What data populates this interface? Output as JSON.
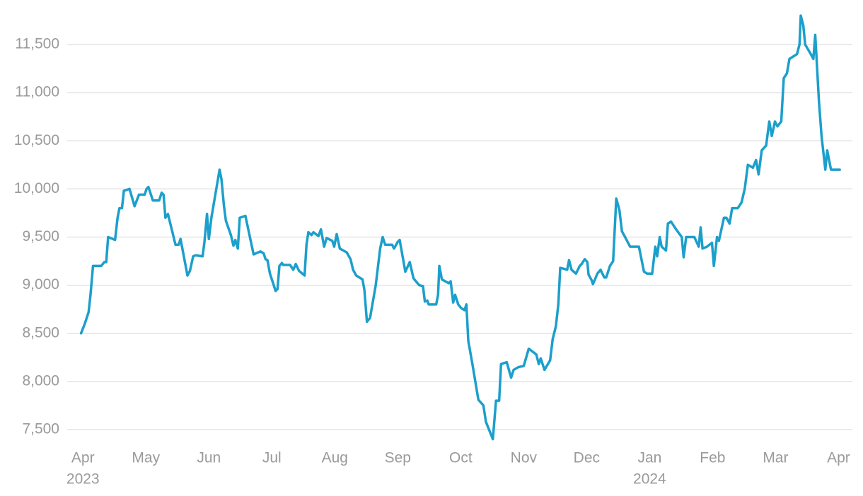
{
  "chart_data": {
    "type": "line",
    "color": "#1c9fcb",
    "grid": true,
    "xlim": [
      -0.25,
      12.22
    ],
    "ylim": [
      7400,
      11880
    ],
    "yticks": [
      {
        "value": 7500,
        "label": "7,500"
      },
      {
        "value": 8000,
        "label": "8,000"
      },
      {
        "value": 8500,
        "label": "8,500"
      },
      {
        "value": 9000,
        "label": "9,000"
      },
      {
        "value": 9500,
        "label": "9,500"
      },
      {
        "value": 10000,
        "label": "10,000"
      },
      {
        "value": 10500,
        "label": "10,500"
      },
      {
        "value": 11000,
        "label": "11,000"
      },
      {
        "value": 11500,
        "label": "11,500"
      }
    ],
    "xticks": [
      {
        "value": 0,
        "label": "Apr"
      },
      {
        "value": 1,
        "label": "May"
      },
      {
        "value": 2,
        "label": "Jun"
      },
      {
        "value": 3,
        "label": "Jul"
      },
      {
        "value": 4,
        "label": "Aug"
      },
      {
        "value": 5,
        "label": "Sep"
      },
      {
        "value": 6,
        "label": "Oct"
      },
      {
        "value": 7,
        "label": "Nov"
      },
      {
        "value": 8,
        "label": "Dec"
      },
      {
        "value": 9,
        "label": "Jan"
      },
      {
        "value": 10,
        "label": "Feb"
      },
      {
        "value": 11,
        "label": "Mar"
      },
      {
        "value": 12,
        "label": "Apr"
      }
    ],
    "xtick_years": [
      {
        "value": 0,
        "label": "2023"
      },
      {
        "value": 9,
        "label": "2024"
      }
    ],
    "x": [
      -0.03,
      0.03,
      0.09,
      0.12,
      0.16,
      0.29,
      0.34,
      0.37,
      0.4,
      0.51,
      0.55,
      0.58,
      0.62,
      0.65,
      0.74,
      0.82,
      0.89,
      0.98,
      1.01,
      1.04,
      1.11,
      1.21,
      1.25,
      1.28,
      1.31,
      1.35,
      1.47,
      1.52,
      1.55,
      1.66,
      1.7,
      1.75,
      1.79,
      1.9,
      1.93,
      1.97,
      2.0,
      2.04,
      2.17,
      2.2,
      2.24,
      2.27,
      2.35,
      2.39,
      2.42,
      2.46,
      2.49,
      2.58,
      2.71,
      2.82,
      2.87,
      2.9,
      2.93,
      2.97,
      3.06,
      3.09,
      3.12,
      3.16,
      3.18,
      3.29,
      3.34,
      3.38,
      3.43,
      3.52,
      3.55,
      3.58,
      3.63,
      3.66,
      3.74,
      3.78,
      3.83,
      3.87,
      3.96,
      3.99,
      4.03,
      4.08,
      4.19,
      4.25,
      4.29,
      4.34,
      4.44,
      4.47,
      4.51,
      4.56,
      4.65,
      4.72,
      4.76,
      4.8,
      4.91,
      4.94,
      5.0,
      5.03,
      5.12,
      5.19,
      5.25,
      5.34,
      5.4,
      5.43,
      5.47,
      5.49,
      5.61,
      5.64,
      5.66,
      5.7,
      5.81,
      5.84,
      5.88,
      5.91,
      5.96,
      6.01,
      6.06,
      6.09,
      6.12,
      6.18,
      6.28,
      6.36,
      6.4,
      6.51,
      6.56,
      6.61,
      6.64,
      6.73,
      6.8,
      6.84,
      6.92,
      7.0,
      7.08,
      7.16,
      7.2,
      7.24,
      7.27,
      7.33,
      7.42,
      7.46,
      7.51,
      7.55,
      7.58,
      7.64,
      7.69,
      7.72,
      7.76,
      7.83,
      7.89,
      7.92,
      7.97,
      8.01,
      8.03,
      8.08,
      8.1,
      8.17,
      8.22,
      8.28,
      8.31,
      8.37,
      8.42,
      8.47,
      8.52,
      8.56,
      8.61,
      8.69,
      8.83,
      8.91,
      8.96,
      9.04,
      9.09,
      9.12,
      9.16,
      9.19,
      9.26,
      9.29,
      9.34,
      9.42,
      9.51,
      9.54,
      9.58,
      9.71,
      9.78,
      9.81,
      9.84,
      9.91,
      9.99,
      10.02,
      10.07,
      10.1,
      10.18,
      10.22,
      10.27,
      10.31,
      10.4,
      10.46,
      10.51,
      10.56,
      10.64,
      10.69,
      10.73,
      10.78,
      10.85,
      10.9,
      10.94,
      10.99,
      11.03,
      11.09,
      11.13,
      11.18,
      11.22,
      11.34,
      11.38,
      11.4,
      11.44,
      11.47,
      11.56,
      11.6,
      11.63,
      11.69,
      11.73,
      11.79,
      11.82,
      11.88,
      12.02
    ],
    "values": [
      8500,
      8600,
      8720,
      8900,
      9200,
      9200,
      9240,
      9240,
      9500,
      9470,
      9700,
      9800,
      9800,
      9980,
      10000,
      9820,
      9940,
      9940,
      10000,
      10020,
      9880,
      9880,
      9960,
      9940,
      9700,
      9740,
      9420,
      9420,
      9480,
      9100,
      9150,
      9300,
      9310,
      9300,
      9450,
      9740,
      9480,
      9700,
      10200,
      10100,
      9820,
      9670,
      9520,
      9410,
      9470,
      9380,
      9700,
      9720,
      9320,
      9350,
      9330,
      9270,
      9260,
      9120,
      8940,
      8960,
      9200,
      9230,
      9210,
      9210,
      9160,
      9220,
      9150,
      9100,
      9420,
      9550,
      9520,
      9550,
      9510,
      9580,
      9400,
      9490,
      9460,
      9400,
      9530,
      9380,
      9340,
      9270,
      9160,
      9100,
      9060,
      8950,
      8620,
      8660,
      9000,
      9380,
      9500,
      9420,
      9420,
      9380,
      9450,
      9470,
      9140,
      9240,
      9070,
      9000,
      8990,
      8830,
      8840,
      8800,
      8800,
      8900,
      9200,
      9060,
      9020,
      9040,
      8820,
      8900,
      8800,
      8760,
      8740,
      8800,
      8420,
      8200,
      7810,
      7750,
      7580,
      7400,
      7800,
      7800,
      8180,
      8200,
      8040,
      8120,
      8150,
      8160,
      8340,
      8300,
      8280,
      8180,
      8240,
      8120,
      8220,
      8440,
      8570,
      8800,
      9180,
      9170,
      9160,
      9260,
      9160,
      9120,
      9200,
      9220,
      9270,
      9240,
      9110,
      9050,
      9010,
      9120,
      9160,
      9080,
      9080,
      9200,
      9250,
      9900,
      9780,
      9560,
      9500,
      9400,
      9400,
      9140,
      9120,
      9120,
      9400,
      9300,
      9500,
      9400,
      9360,
      9640,
      9660,
      9580,
      9500,
      9290,
      9500,
      9500,
      9400,
      9600,
      9380,
      9400,
      9440,
      9200,
      9500,
      9460,
      9700,
      9700,
      9640,
      9800,
      9800,
      9860,
      10000,
      10250,
      10220,
      10300,
      10150,
      10400,
      10450,
      10700,
      10550,
      10700,
      10650,
      10700,
      11150,
      11200,
      11350,
      11400,
      11500,
      11800,
      11700,
      11500,
      11400,
      11350,
      11600,
      10900,
      10550,
      10200,
      10400,
      10200,
      10200
    ]
  }
}
